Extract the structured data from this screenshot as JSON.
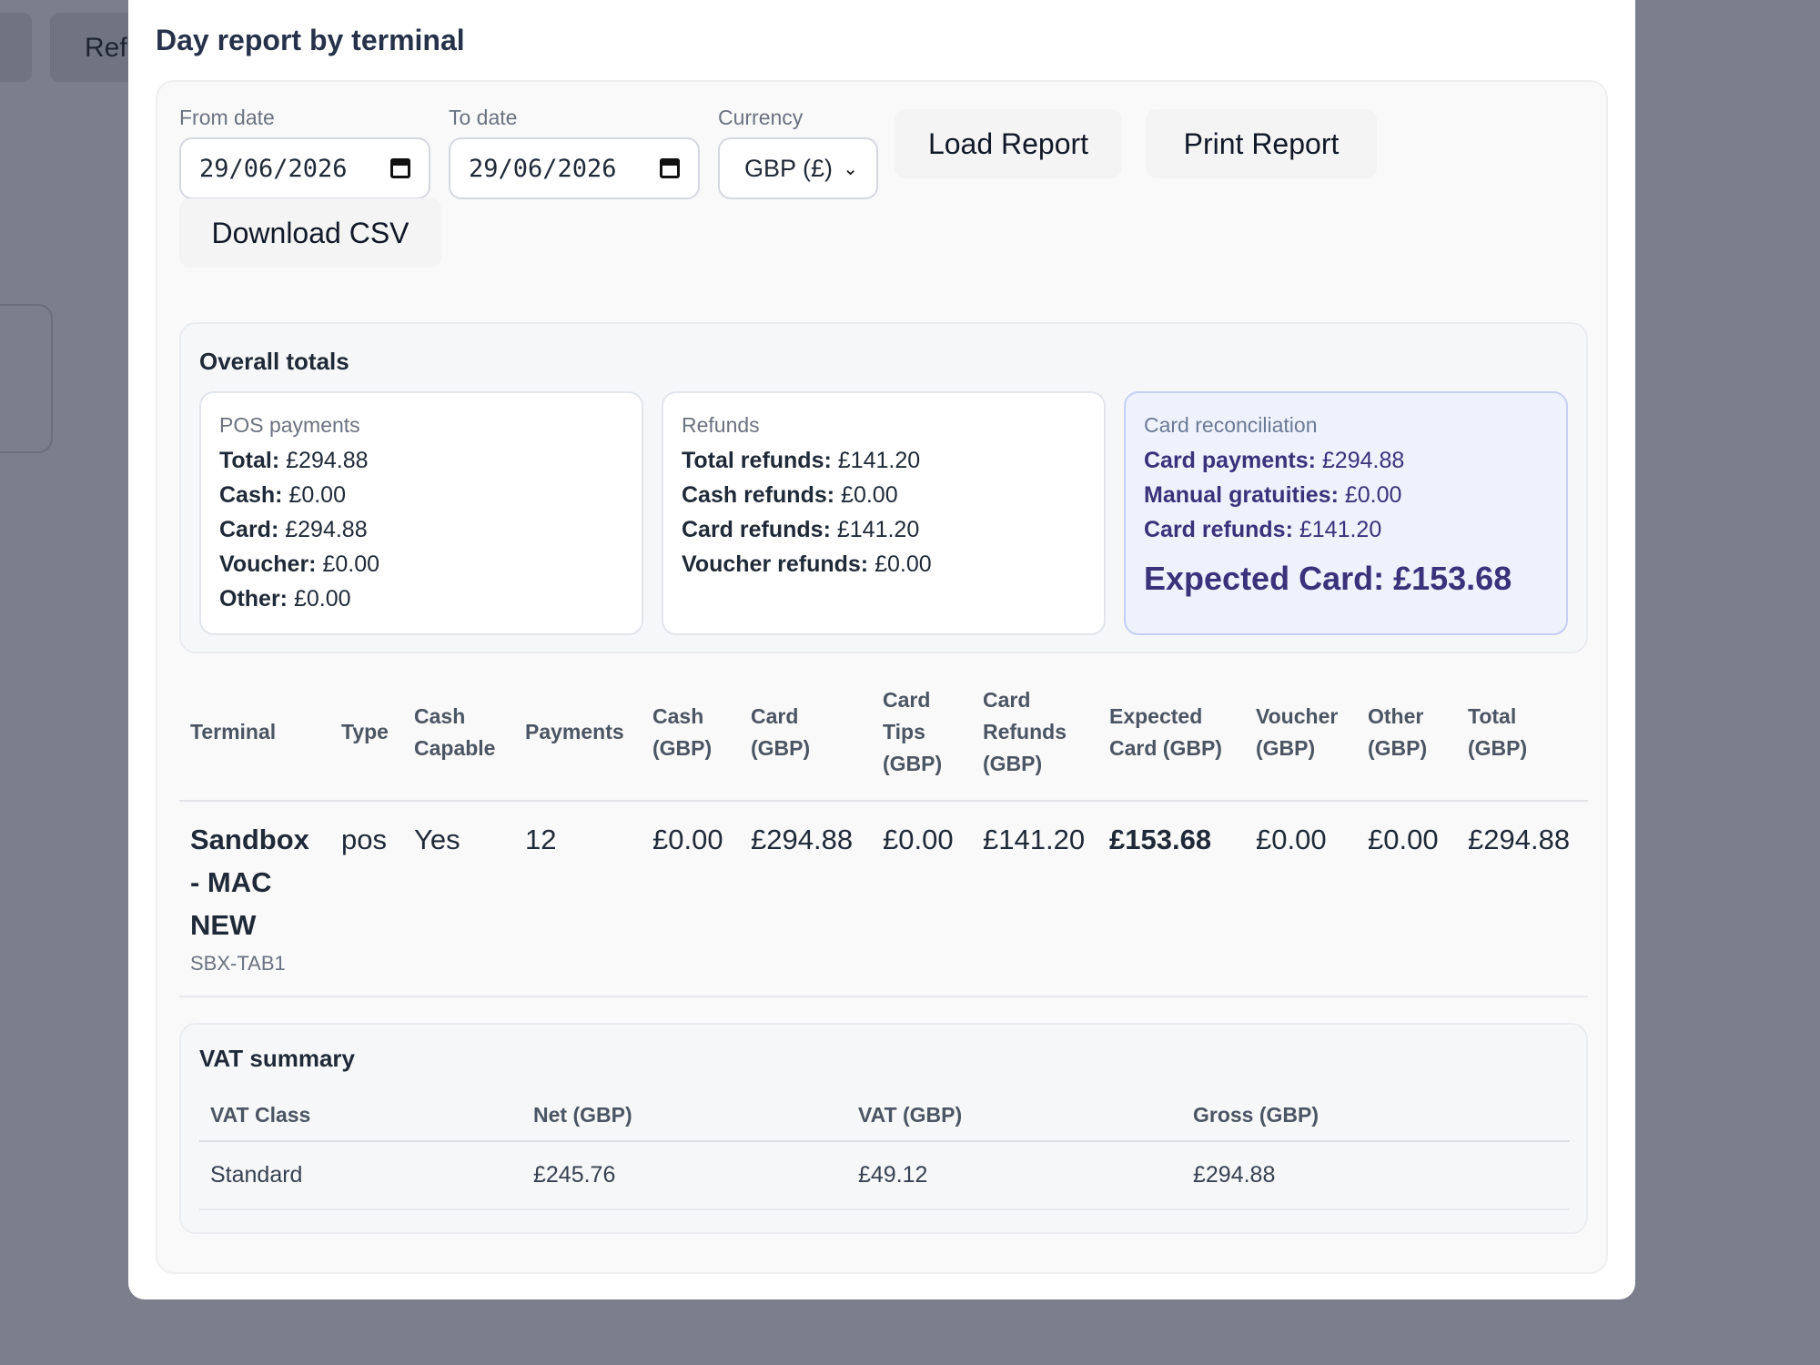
{
  "background": {
    "tab_label": "Ref"
  },
  "modal": {
    "title": "Day report by terminal"
  },
  "filters": {
    "from_label": "From date",
    "from_value": "29/06/2026",
    "to_label": "To date",
    "to_value": "29/06/2026",
    "currency_label": "Currency",
    "currency_value": "GBP (£)"
  },
  "actions": {
    "load_label": "Load Report",
    "print_label": "Print Report",
    "csv_label": "Download CSV"
  },
  "totals": {
    "title": "Overall totals",
    "pos": {
      "heading": "POS payments",
      "rows": [
        {
          "label": "Total:",
          "value": "£294.88"
        },
        {
          "label": "Cash:",
          "value": "£0.00"
        },
        {
          "label": "Card:",
          "value": "£294.88"
        },
        {
          "label": "Voucher:",
          "value": "£0.00"
        },
        {
          "label": "Other:",
          "value": "£0.00"
        }
      ]
    },
    "refunds": {
      "heading": "Refunds",
      "rows": [
        {
          "label": "Total refunds:",
          "value": "£141.20"
        },
        {
          "label": "Cash refunds:",
          "value": "£0.00"
        },
        {
          "label": "Card refunds:",
          "value": "£141.20"
        },
        {
          "label": "Voucher refunds:",
          "value": "£0.00"
        }
      ]
    },
    "reconciliation": {
      "heading": "Card reconciliation",
      "rows": [
        {
          "label": "Card payments:",
          "value": "£294.88"
        },
        {
          "label": "Manual gratuities:",
          "value": "£0.00"
        },
        {
          "label": "Card refunds:",
          "value": "£141.20"
        }
      ],
      "expected": "Expected Card: £153.68"
    }
  },
  "terminal_table": {
    "headers": [
      "Terminal",
      "Type",
      "Cash Capable",
      "Payments",
      "Cash (GBP)",
      "Card (GBP)",
      "Card Tips (GBP)",
      "Card Refunds (GBP)",
      "Expected Card (GBP)",
      "Voucher (GBP)",
      "Other (GBP)",
      "Total (GBP)"
    ],
    "rows": [
      {
        "name": "Sandbox - MAC NEW",
        "id": "SBX-TAB1",
        "type": "pos",
        "cash_capable": "Yes",
        "payments": "12",
        "cash": "£0.00",
        "card": "£294.88",
        "tips": "£0.00",
        "refunds": "£141.20",
        "expected": "£153.68",
        "voucher": "£0.00",
        "other": "£0.00",
        "total": "£294.88"
      }
    ]
  },
  "vat": {
    "title": "VAT summary",
    "headers": [
      "VAT Class",
      "Net (GBP)",
      "VAT (GBP)",
      "Gross (GBP)"
    ],
    "rows": [
      {
        "class": "Standard",
        "net": "£245.76",
        "vat": "£49.12",
        "gross": "£294.88"
      }
    ]
  }
}
